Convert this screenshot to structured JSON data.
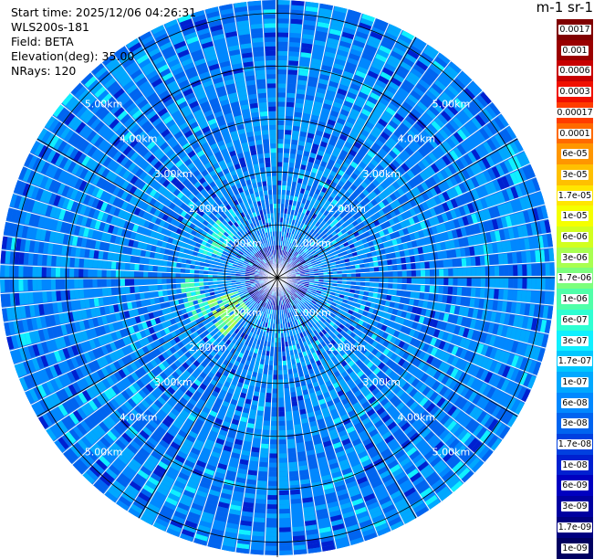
{
  "header": {
    "start_time": "Start time: 2025/12/06 04:26:31",
    "instrument": "WLS200s-181",
    "field": "Field: BETA",
    "elevation": "Elevation(deg): 35.00",
    "nrays": "NRays: 120"
  },
  "colorbar": {
    "title": "m-1 sr-1",
    "labels": [
      "0.0017",
      "0.001",
      "0.0006",
      "0.0003",
      "0.00017",
      "0.0001",
      "6e-05",
      "3e-05",
      "1.7e-05",
      "1e-05",
      "6e-06",
      "3e-06",
      "1.7e-06",
      "1e-06",
      "6e-07",
      "3e-07",
      "1.7e-07",
      "1e-07",
      "6e-08",
      "3e-08",
      "1.7e-08",
      "1e-08",
      "6e-09",
      "3e-09",
      "1.7e-09",
      "1e-09"
    ],
    "colors": [
      "#800000",
      "#9a0000",
      "#c80000",
      "#f01000",
      "#ff3c00",
      "#ff6a00",
      "#ff9600",
      "#ffc000",
      "#ffe600",
      "#f5ff00",
      "#d2ff1e",
      "#a8ff50",
      "#7cff7c",
      "#50ffa8",
      "#2effd2",
      "#10f0ff",
      "#00c8ff",
      "#00a8ff",
      "#0088ff",
      "#0064f0",
      "#0040e0",
      "#0020d0",
      "#0000c0",
      "#0000a0",
      "#000080",
      "#000060"
    ]
  },
  "chart_data": {
    "type": "heatmap",
    "projection": "polar PPI",
    "field": "BETA",
    "elevation_deg": 35.0,
    "n_rays": 120,
    "range_rings_km": [
      1,
      2,
      3,
      4,
      5
    ],
    "ring_labels": [
      "1.00km",
      "2.00km",
      "3.00km",
      "4.00km",
      "5.00km"
    ],
    "max_range_km": 5.25,
    "azimuth_lines_deg": [
      0,
      30,
      60,
      90,
      120,
      150,
      180,
      210,
      240,
      270,
      300,
      330
    ],
    "color_scale": "log",
    "color_range": [
      1e-09,
      0.0017
    ],
    "dominant_value_range": [
      3e-08,
      1e-07
    ],
    "highlight_regions": [
      {
        "azimuth_deg": 235,
        "range_km": [
          0.8,
          1.5
        ],
        "approx_value": 3e-06
      },
      {
        "azimuth_deg": 300,
        "range_km": [
          1.1,
          1.6
        ],
        "approx_value": 1e-06
      },
      {
        "azimuth_deg": 255,
        "range_km": [
          1.4,
          1.8
        ],
        "approx_value": 1e-06
      }
    ]
  }
}
